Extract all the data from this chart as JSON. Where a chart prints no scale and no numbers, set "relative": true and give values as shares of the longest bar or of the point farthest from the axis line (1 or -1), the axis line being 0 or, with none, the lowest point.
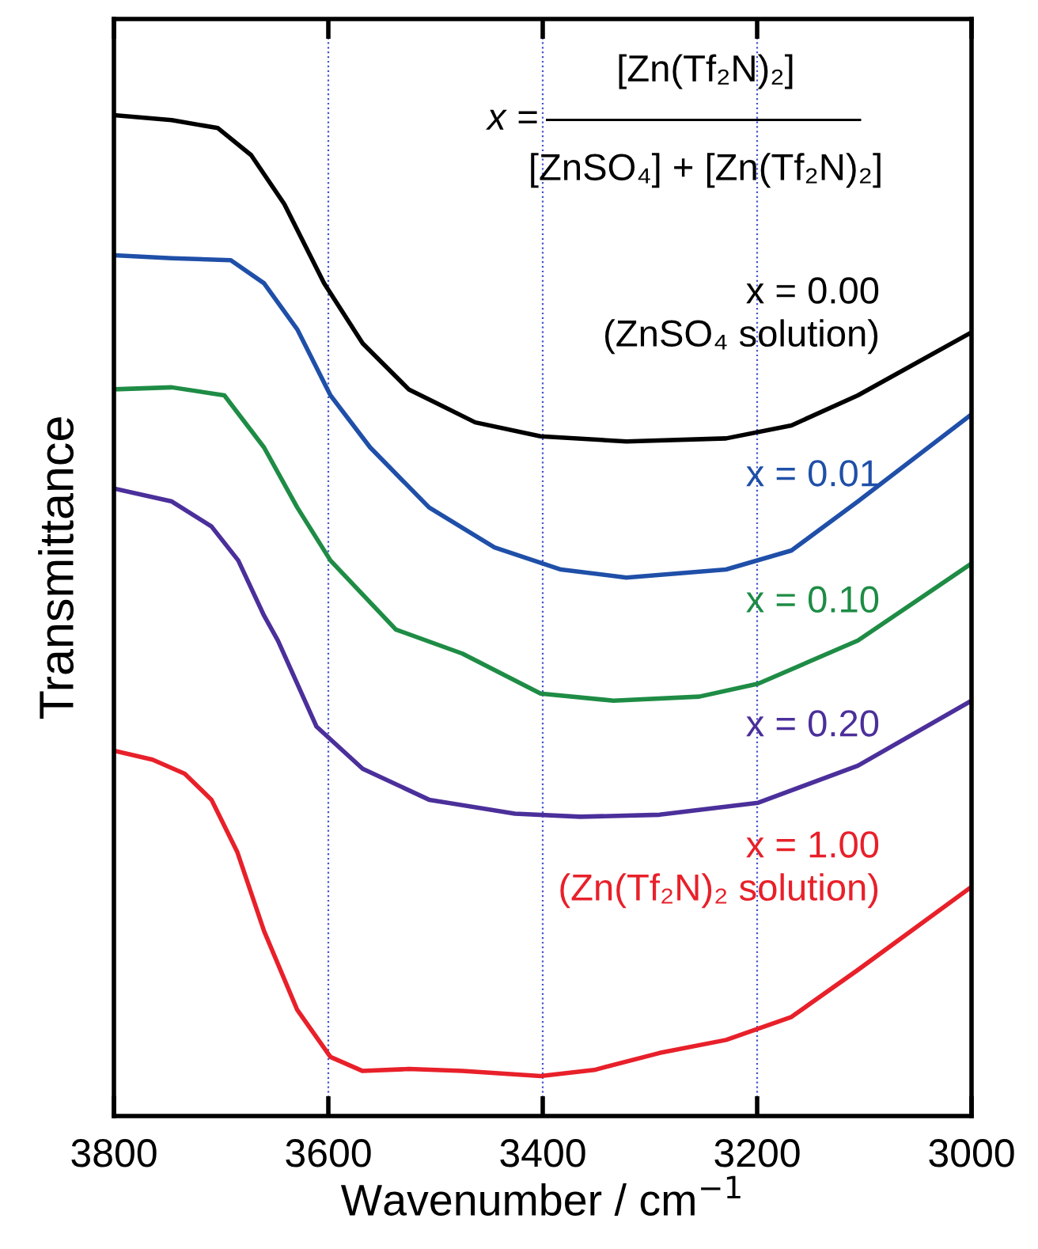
{
  "chart_data": {
    "type": "line",
    "relative": true,
    "xlabel": "Wavenumber / cm$^{−1}$",
    "ylabel": "Transmittance",
    "xlim": [
      3800,
      3000
    ],
    "xticks": [
      3800,
      3600,
      3400,
      3200,
      3000
    ],
    "grid": "x",
    "legend": false,
    "marker": "none",
    "line_style": "solid",
    "annotations": [
      "x =",
      "[Zn(Tf₂N)₂]",
      "[ZnSO₄] + [Zn(Tf₂N)₂]"
    ],
    "series": [
      {
        "name": "x = 0.00\n(ZnSO₄ solution)",
        "color": "#000000",
        "x": [
          3800,
          3746,
          3703,
          3672,
          3641,
          3604,
          3568,
          3525,
          3463,
          3402,
          3322,
          3229,
          3168,
          3106,
          3000
        ],
        "values": [
          1.0,
          0.995,
          0.987,
          0.96,
          0.911,
          0.832,
          0.772,
          0.726,
          0.693,
          0.679,
          0.674,
          0.677,
          0.69,
          0.72,
          0.783
        ]
      },
      {
        "name": "x = 0.01",
        "color": "#1f4fa8",
        "x": [
          3800,
          3746,
          3691,
          3660,
          3629,
          3598,
          3561,
          3506,
          3445,
          3383,
          3322,
          3229,
          3168,
          3106,
          3000
        ],
        "values": [
          0.86,
          0.857,
          0.855,
          0.832,
          0.786,
          0.72,
          0.668,
          0.608,
          0.568,
          0.546,
          0.538,
          0.546,
          0.565,
          0.614,
          0.701
        ]
      },
      {
        "name": "x = 0.10",
        "color": "#1e8c45",
        "x": [
          3800,
          3746,
          3697,
          3660,
          3629,
          3598,
          3537,
          3475,
          3402,
          3334,
          3254,
          3199,
          3106,
          3000
        ],
        "values": [
          0.726,
          0.728,
          0.72,
          0.668,
          0.608,
          0.555,
          0.486,
          0.462,
          0.422,
          0.415,
          0.419,
          0.432,
          0.475,
          0.552
        ]
      },
      {
        "name": "x = 0.20",
        "color": "#4b2f9a",
        "x": [
          3800,
          3746,
          3709,
          3684,
          3660,
          3647,
          3611,
          3568,
          3506,
          3426,
          3365,
          3291,
          3199,
          3106,
          3000
        ],
        "values": [
          0.627,
          0.614,
          0.589,
          0.555,
          0.5,
          0.475,
          0.389,
          0.347,
          0.316,
          0.302,
          0.299,
          0.301,
          0.313,
          0.35,
          0.415
        ]
      },
      {
        "name": "x = 1.00\n(Zn(Tf₂N)₂ solution)",
        "color": "#e8202a",
        "x": [
          3800,
          3764,
          3734,
          3709,
          3685,
          3660,
          3629,
          3598,
          3568,
          3525,
          3475,
          3402,
          3352,
          3291,
          3229,
          3168,
          3106,
          3000
        ],
        "values": [
          0.365,
          0.356,
          0.342,
          0.316,
          0.264,
          0.185,
          0.106,
          0.059,
          0.045,
          0.047,
          0.045,
          0.04,
          0.046,
          0.063,
          0.076,
          0.099,
          0.146,
          0.229
        ]
      }
    ]
  }
}
